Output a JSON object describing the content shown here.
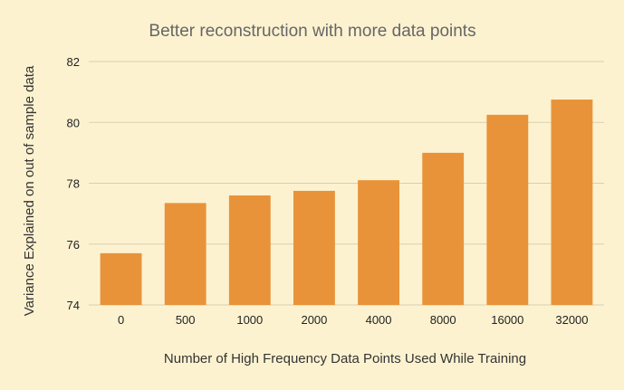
{
  "chart_data": {
    "type": "bar",
    "title": "Better reconstruction with more data points",
    "xlabel": "Number of High Frequency Data Points Used While Training",
    "ylabel": "Variance Explained on out of sample data",
    "categories": [
      "0",
      "500",
      "1000",
      "2000",
      "4000",
      "8000",
      "16000",
      "32000"
    ],
    "values": [
      75.7,
      77.35,
      77.6,
      77.75,
      78.1,
      79.0,
      80.25,
      80.75
    ],
    "ylim": [
      74,
      82
    ],
    "yticks": [
      "74",
      "76",
      "78",
      "80",
      "82"
    ],
    "grid": true,
    "legend": "none",
    "colors": {
      "bar": "#e8933a",
      "background": "#fdf2d0",
      "grid": "#d8cfb4"
    }
  }
}
